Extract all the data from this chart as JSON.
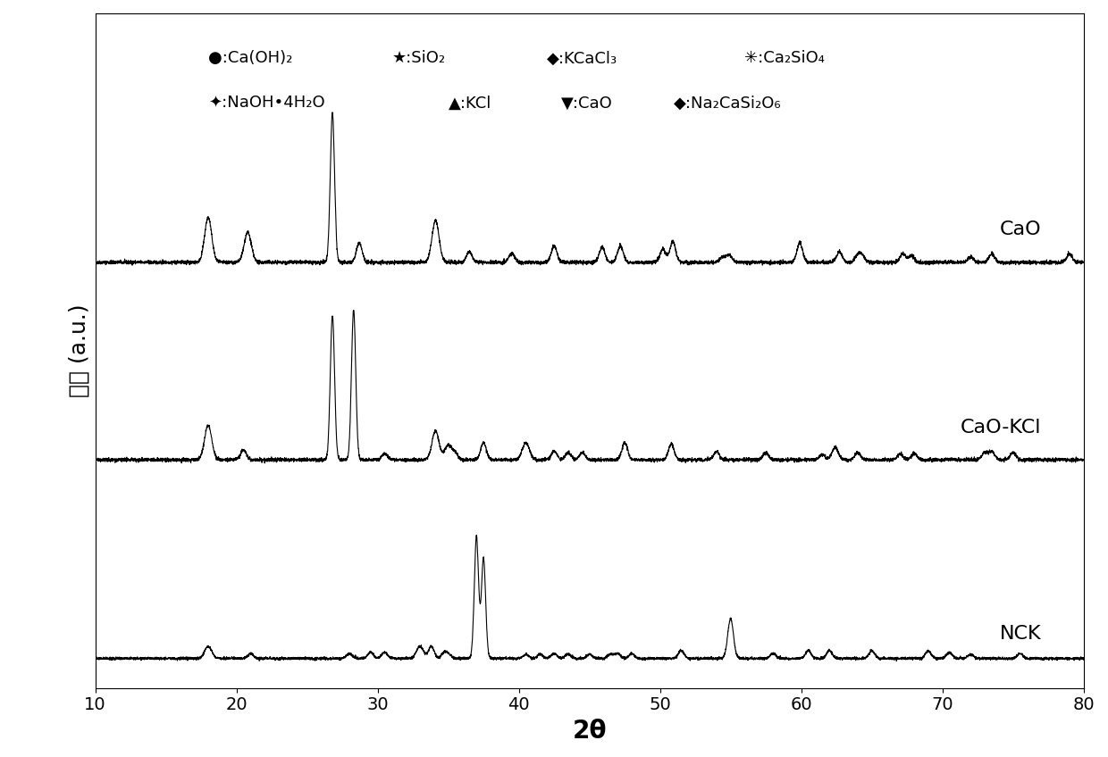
{
  "xlabel": "2θ",
  "ylabel": "强度 (a.u.)",
  "xlim": [
    10,
    80
  ],
  "sample_labels": [
    "CaO",
    "CaO-KCl",
    "NCK"
  ],
  "sample_offsets": [
    2.2,
    1.1,
    0.0
  ],
  "legend_line1": "●:Ca(OH)₂   ★:SiO₂    ◆:KCaCl₃   ✳:Ca₂SiO₄",
  "legend_line2": "⭑:NaOH•4H₂O  ▲:KCl    ▼:CaO   ◆:Na₂CaSi₂O₆",
  "background_color": "#ffffff",
  "line_color": "#000000"
}
